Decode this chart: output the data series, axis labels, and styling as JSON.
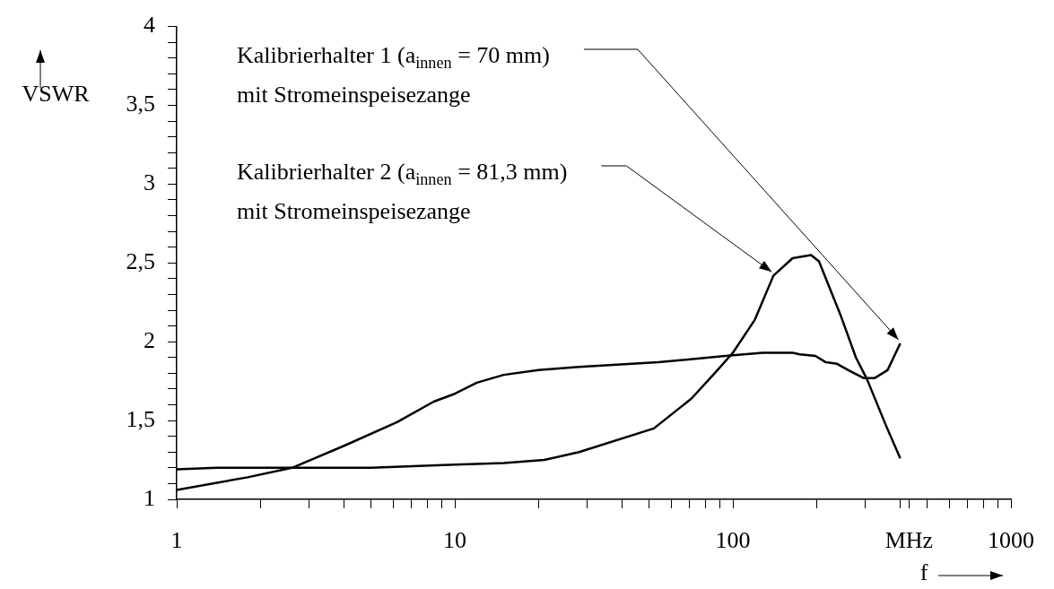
{
  "chart_data": {
    "type": "line",
    "xlabel": "f",
    "ylabel": "VSWR",
    "log": "x",
    "grid": false,
    "legend": false,
    "marker": "none",
    "line_style": "solid",
    "xlim": [
      1,
      1000
    ],
    "ylim": [
      1,
      4
    ],
    "xticks": [
      1,
      {
        "value": 2,
        "label": null
      },
      {
        "value": 3,
        "label": null
      },
      {
        "value": 4,
        "label": null
      },
      {
        "value": 5,
        "label": null
      },
      {
        "value": 6,
        "label": null
      },
      {
        "value": 7,
        "label": null
      },
      {
        "value": 8,
        "label": null
      },
      {
        "value": 9,
        "label": null
      },
      10,
      {
        "value": 20,
        "label": null
      },
      {
        "value": 30,
        "label": null
      },
      {
        "value": 40,
        "label": null
      },
      {
        "value": 50,
        "label": null
      },
      {
        "value": 60,
        "label": null
      },
      {
        "value": 70,
        "label": null
      },
      {
        "value": 80,
        "label": null
      },
      {
        "value": 90,
        "label": null
      },
      100,
      {
        "value": 200,
        "label": null
      },
      {
        "value": 300,
        "label": null
      },
      {
        "value": 400,
        "label": null
      },
      {
        "value": 430,
        "label": "MHz"
      },
      {
        "value": 500,
        "label": null
      },
      {
        "value": 600,
        "label": null
      },
      {
        "value": 700,
        "label": null
      },
      {
        "value": 800,
        "label": null
      },
      {
        "value": 900,
        "label": null
      },
      1000
    ],
    "yticks": [
      1,
      {
        "value": 1.1,
        "label": null
      },
      {
        "value": 1.2,
        "label": null
      },
      {
        "value": 1.3,
        "label": null
      },
      {
        "value": 1.4,
        "label": null
      },
      {
        "value": 1.5,
        "label": "1,5"
      },
      {
        "value": 1.6,
        "label": null
      },
      {
        "value": 1.7,
        "label": null
      },
      {
        "value": 1.8,
        "label": null
      },
      {
        "value": 1.9,
        "label": null
      },
      2,
      {
        "value": 2.1,
        "label": null
      },
      {
        "value": 2.2,
        "label": null
      },
      {
        "value": 2.3,
        "label": null
      },
      {
        "value": 2.4,
        "label": null
      },
      {
        "value": 2.5,
        "label": "2,5"
      },
      {
        "value": 2.6,
        "label": null
      },
      {
        "value": 2.7,
        "label": null
      },
      {
        "value": 2.8,
        "label": null
      },
      {
        "value": 2.9,
        "label": null
      },
      3,
      {
        "value": 3.1,
        "label": null
      },
      {
        "value": 3.2,
        "label": null
      },
      {
        "value": 3.3,
        "label": null
      },
      {
        "value": 3.4,
        "label": null
      },
      {
        "value": 3.5,
        "label": "3,5"
      },
      {
        "value": 3.6,
        "label": null
      },
      {
        "value": 3.7,
        "label": null
      },
      {
        "value": 3.8,
        "label": null
      },
      {
        "value": 3.9,
        "label": null
      },
      4
    ],
    "series": [
      {
        "color": "#000000",
        "x": [
          1,
          1.8,
          2.6,
          4,
          6.2,
          8.4,
          10,
          12,
          15,
          20,
          28,
          54,
          94,
          128,
          164,
          174,
          198,
          216,
          237,
          260,
          295,
          324,
          360,
          400
        ],
        "values": [
          1.06,
          1.14,
          1.2,
          1.34,
          1.49,
          1.62,
          1.67,
          1.74,
          1.79,
          1.82,
          1.84,
          1.87,
          1.91,
          1.93,
          1.93,
          1.92,
          1.91,
          1.87,
          1.86,
          1.82,
          1.77,
          1.77,
          1.82,
          1.99
        ]
      },
      {
        "color": "#000000",
        "x": [
          1,
          1.4,
          1.8,
          3,
          5,
          10,
          15,
          21,
          28,
          52,
          71,
          86,
          100,
          120,
          140,
          164,
          191,
          204,
          245,
          277,
          304,
          355,
          400
        ],
        "values": [
          1.19,
          1.2,
          1.2,
          1.2,
          1.2,
          1.22,
          1.23,
          1.25,
          1.3,
          1.45,
          1.64,
          1.8,
          1.93,
          2.14,
          2.42,
          2.53,
          2.55,
          2.51,
          2.16,
          1.9,
          1.76,
          1.47,
          1.26
        ]
      }
    ],
    "annotations": [
      "Kalibrierhalter 1 (a$_{innen}$ = 70 mm)\nmit Stromeinspeisezange",
      "Kalibrierhalter 2 (a$_{innen}$ = 81,3 mm)\nmit Stromeinspeisezange"
    ]
  }
}
